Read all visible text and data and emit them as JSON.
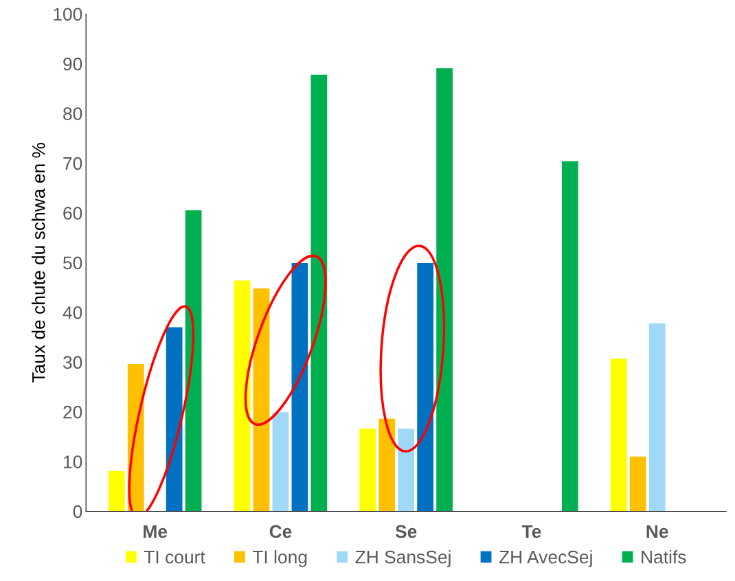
{
  "chart_data": {
    "type": "bar",
    "ylabel": "Taux de chute du schwa en %",
    "categories": [
      "Me",
      "Ce",
      "Se",
      "Te",
      "Ne"
    ],
    "series": [
      {
        "name": "TI court",
        "color": "#ffff00",
        "values": [
          8.1,
          46.4,
          16.6,
          null,
          30.7
        ]
      },
      {
        "name": "TI long",
        "color": "#ffc000",
        "values": [
          29.6,
          44.8,
          18.6,
          null,
          11.0
        ]
      },
      {
        "name": "ZH SansSej",
        "color": "#a0d8f8",
        "values": [
          null,
          19.9,
          16.6,
          null,
          37.8
        ]
      },
      {
        "name": "ZH AvecSej",
        "color": "#0070c0",
        "values": [
          37.0,
          49.9,
          49.9,
          null,
          null
        ]
      },
      {
        "name": "Natifs",
        "color": "#00b050",
        "values": [
          60.5,
          87.8,
          89.1,
          70.4,
          null
        ]
      }
    ],
    "ylim": [
      0,
      100
    ],
    "yticks": [
      0,
      10,
      20,
      30,
      40,
      50,
      60,
      70,
      80,
      90,
      100
    ],
    "grid": false,
    "legend": "bottom"
  }
}
